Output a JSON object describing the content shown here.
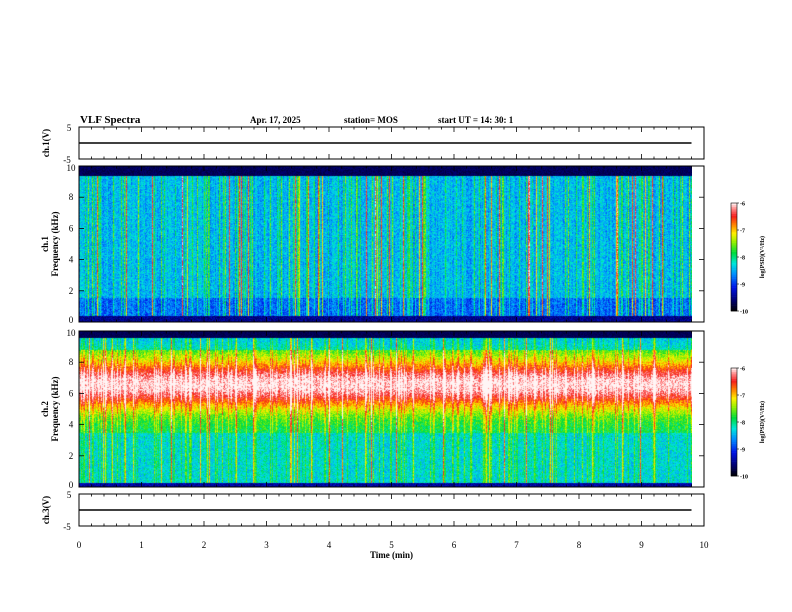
{
  "header": {
    "title": "VLF Spectra",
    "date": "Apr. 17, 2025",
    "station": "station= MOS",
    "start": "start  UT  =   14: 30: 1"
  },
  "chart_data": [
    {
      "type": "line",
      "panel": "ch1-waveform",
      "ylabel": "ch.1(V)",
      "ylim": [
        -5,
        5
      ],
      "ytick_labels": [
        "5",
        "-5"
      ],
      "xlim": [
        0,
        10
      ],
      "series": [
        {
          "x": [
            0,
            9.8
          ],
          "y": [
            0,
            0
          ]
        }
      ]
    },
    {
      "type": "heatmap",
      "panel": "ch1-spectrogram",
      "ylabel": "ch.1\nFrequency (kHz)",
      "xlim": [
        0,
        10
      ],
      "ylim": [
        0,
        10
      ],
      "yticks": [
        0,
        2,
        4,
        6,
        8,
        10
      ],
      "data_extent_x": [
        0,
        9.8
      ],
      "colorbar": {
        "label": "log(PSD)(V²/Hz)",
        "range": [
          -10,
          -6
        ],
        "ticks": [
          -10,
          -9,
          -8,
          -7,
          -6
        ]
      }
    },
    {
      "type": "heatmap",
      "panel": "ch2-spectrogram",
      "ylabel": "ch.2\nFrequency (kHz)",
      "xlim": [
        0,
        10
      ],
      "ylim": [
        0,
        10
      ],
      "yticks": [
        0,
        2,
        4,
        6,
        8,
        10
      ],
      "data_extent_x": [
        0,
        9.8
      ],
      "colorbar": {
        "label": "log(PSD)(V²/Hz)",
        "range": [
          -10,
          -6
        ],
        "ticks": [
          -10,
          -9,
          -8,
          -7,
          -6
        ]
      }
    },
    {
      "type": "line",
      "panel": "ch3-waveform",
      "ylabel": "ch.3(V)",
      "ylim": [
        -5,
        5
      ],
      "ytick_labels": [
        "5",
        "-5"
      ],
      "xlim": [
        0,
        10
      ],
      "xlabel": "Time  (min)",
      "xticks": [
        0,
        1,
        2,
        3,
        4,
        5,
        6,
        7,
        8,
        9,
        10
      ],
      "series": [
        {
          "x": [
            0,
            9.8
          ],
          "y": [
            0,
            0
          ]
        }
      ]
    }
  ]
}
